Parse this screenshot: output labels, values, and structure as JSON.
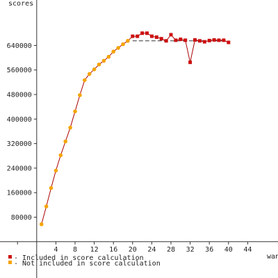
{
  "chart_data": {
    "type": "scatter",
    "ylabel": "scores",
    "xlabel": "wan",
    "xlim": [
      -12,
      46
    ],
    "ylim": [
      -35000,
      705000
    ],
    "x_ticks": [
      4,
      8,
      12,
      16,
      20,
      24,
      28,
      32,
      36,
      40,
      44
    ],
    "y_ticks": [
      80000,
      160000,
      240000,
      320000,
      400000,
      480000,
      560000,
      640000
    ],
    "trend_line": {
      "x_start": 20,
      "x_end": 39.5,
      "y": 655000
    },
    "series": [
      {
        "name": "Not included in score calculation",
        "marker_color": "#f5a400",
        "x": [
          1,
          2,
          3,
          4,
          5,
          6,
          7,
          8,
          9,
          10,
          11,
          12,
          13,
          14,
          15,
          16,
          17,
          18,
          19
        ],
        "y": [
          57000,
          115000,
          175000,
          232000,
          282000,
          327000,
          372000,
          425000,
          478000,
          527000,
          547000,
          562000,
          578000,
          590000,
          603000,
          620000,
          632000,
          644000,
          655000
        ]
      },
      {
        "name": "Included in score calculation",
        "marker_color": "#cc1111",
        "x": [
          20,
          21,
          22,
          23,
          24,
          25,
          26,
          27,
          28,
          29,
          30,
          31,
          32,
          33,
          34,
          35,
          36,
          37,
          38,
          39,
          40
        ],
        "y": [
          670000,
          670000,
          680000,
          680000,
          670000,
          667000,
          662000,
          655000,
          675000,
          657000,
          660000,
          657000,
          585000,
          658000,
          655000,
          652000,
          656000,
          658000,
          657000,
          657000,
          650000
        ]
      }
    ],
    "line_color": "#aa0000",
    "legend": [
      {
        "symbol": "#cc1111",
        "label": "- Included in score calculation"
      },
      {
        "symbol": "#f5a400",
        "label": "- Not included in score calculation"
      }
    ],
    "legend_position": "bottom-left",
    "grid": false
  }
}
